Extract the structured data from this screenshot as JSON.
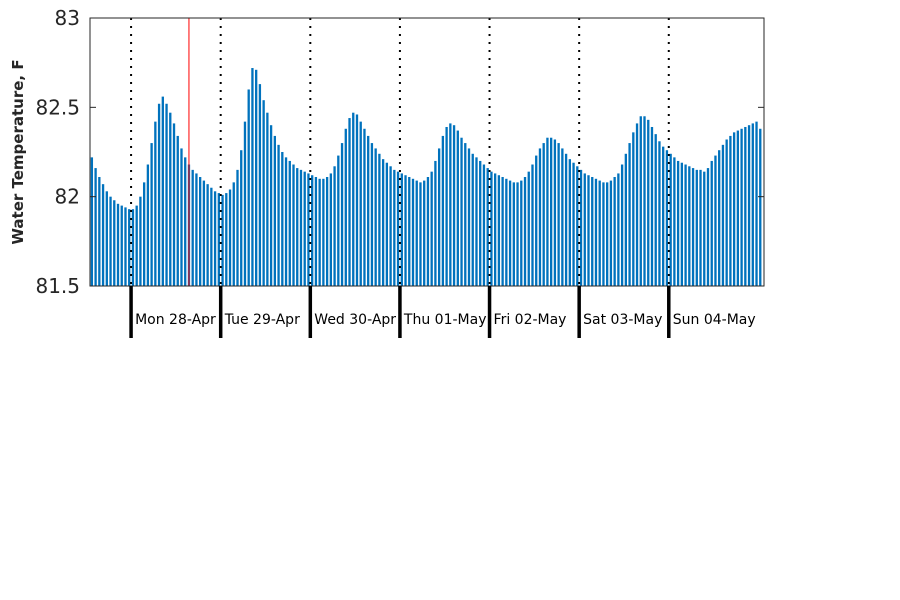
{
  "chart_data": {
    "type": "bar",
    "title": "",
    "xlabel": "",
    "ylabel": "Water Temperature, F",
    "ylim": [
      81.5,
      83
    ],
    "yticks": [
      81.5,
      82,
      82.5,
      83
    ],
    "ytick_labels": [
      "81.5",
      "82",
      "82.5",
      "83"
    ],
    "bar_color": "#0072BD",
    "marker_color": "#FF0000",
    "grid": false,
    "series": [
      {
        "values": [
          82.22,
          82.16,
          82.11,
          82.07,
          82.03,
          82.0,
          81.98,
          81.96,
          81.95,
          81.94,
          81.93,
          81.93,
          81.95,
          82.0,
          82.08,
          82.18,
          82.3,
          82.42,
          82.52,
          82.56,
          82.52,
          82.47,
          82.41,
          82.34,
          82.27,
          82.22,
          82.18,
          82.15,
          82.13,
          82.11,
          82.09,
          82.07,
          82.05,
          82.03,
          82.02,
          82.01,
          82.02,
          82.04,
          82.08,
          82.15,
          82.26,
          82.42,
          82.6,
          82.72,
          82.71,
          82.63,
          82.54,
          82.47,
          82.4,
          82.34,
          82.29,
          82.25,
          82.22,
          82.2,
          82.18,
          82.16,
          82.15,
          82.14,
          82.13,
          82.12,
          82.11,
          82.1,
          82.1,
          82.11,
          82.13,
          82.17,
          82.23,
          82.3,
          82.38,
          82.44,
          82.47,
          82.46,
          82.42,
          82.38,
          82.34,
          82.3,
          82.27,
          82.24,
          82.21,
          82.19,
          82.17,
          82.15,
          82.14,
          82.13,
          82.12,
          82.11,
          82.1,
          82.09,
          82.08,
          82.09,
          82.11,
          82.14,
          82.2,
          82.27,
          82.34,
          82.39,
          82.41,
          82.4,
          82.37,
          82.33,
          82.3,
          82.27,
          82.24,
          82.22,
          82.2,
          82.18,
          82.16,
          82.14,
          82.13,
          82.12,
          82.11,
          82.1,
          82.09,
          82.08,
          82.08,
          82.09,
          82.11,
          82.14,
          82.18,
          82.23,
          82.27,
          82.3,
          82.33,
          82.33,
          82.32,
          82.3,
          82.27,
          82.24,
          82.21,
          82.19,
          82.17,
          82.15,
          82.13,
          82.12,
          82.11,
          82.1,
          82.09,
          82.08,
          82.08,
          82.09,
          82.11,
          82.13,
          82.18,
          82.24,
          82.3,
          82.36,
          82.41,
          82.45,
          82.45,
          82.43,
          82.39,
          82.35,
          82.31,
          82.28,
          82.26,
          82.24,
          82.22,
          82.2,
          82.19,
          82.18,
          82.17,
          82.16,
          82.15,
          82.15,
          82.14,
          82.16,
          82.2,
          82.23,
          82.26,
          82.29,
          82.32,
          82.34,
          82.36,
          82.37,
          82.38,
          82.39,
          82.4,
          82.41,
          82.42,
          82.38
        ]
      }
    ],
    "day_labels": [
      "Mon 28-Apr",
      "Tue 29-Apr",
      "Wed 30-Apr",
      "Thu 01-May",
      "Fri 02-May",
      "Sat 03-May",
      "Sun 04-May"
    ]
  }
}
